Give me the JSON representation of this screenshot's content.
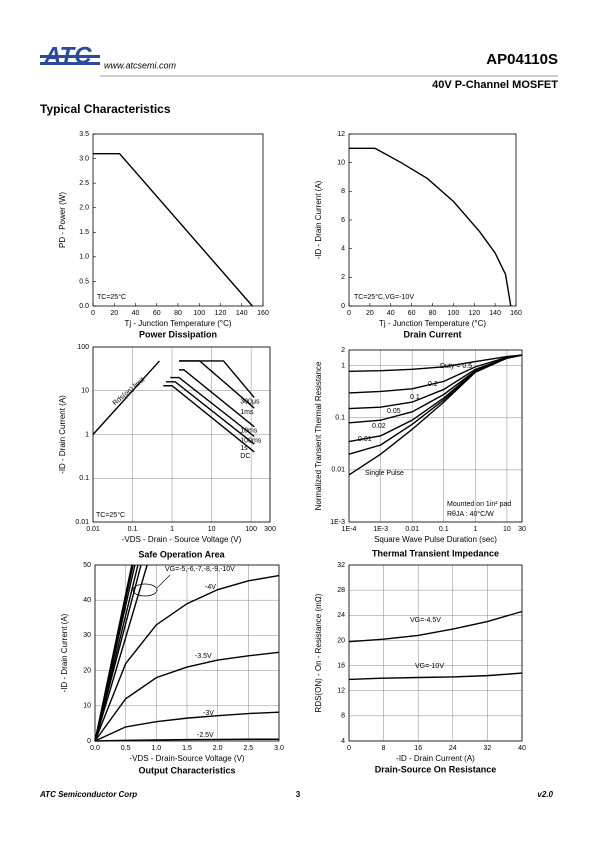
{
  "header": {
    "logo": "ATC",
    "url": "www.atcsemi.com",
    "part": "AP04110S",
    "subtitle": "40V P-Channel MOSFET",
    "section": "Typical Characteristics"
  },
  "footer": {
    "company": "ATC Semiconductor Corp",
    "page": "3",
    "version": "v2.0"
  },
  "chart_data": [
    {
      "type": "line",
      "title": "Power Dissipation",
      "x_label": "Tj - Junction Temperature (°C)",
      "y_label": "PD - Power (W)",
      "x": [
        0,
        25,
        150
      ],
      "series": [
        {
          "color": "#000000",
          "values": [
            3.1,
            3.1,
            0
          ]
        }
      ],
      "xlim": [
        0,
        160
      ],
      "xticks": [
        0,
        20,
        40,
        60,
        80,
        100,
        120,
        140,
        160
      ],
      "ylim": [
        0,
        3.5
      ],
      "yticks": [
        {
          "value": 0,
          "label": "0.0"
        },
        0.5,
        {
          "value": 1,
          "label": "1.0"
        },
        1.5,
        {
          "value": 2,
          "label": "2.0"
        },
        2.5,
        {
          "value": 3,
          "label": "3.0"
        },
        3.5
      ],
      "grid": false,
      "annotations": [
        "TC=25°C"
      ]
    },
    {
      "type": "line",
      "title": "Drain Current",
      "x_label": "Tj - Junction Temperature (°C)",
      "y_label": "-ID - Drain Current (A)",
      "x": [
        0,
        25,
        50,
        75,
        100,
        125,
        140,
        150,
        155
      ],
      "series": [
        {
          "color": "#000000",
          "values": [
            11,
            11,
            10,
            8.9,
            7.3,
            5.2,
            3.7,
            2.2,
            0
          ]
        }
      ],
      "xlim": [
        0,
        160
      ],
      "xticks": [
        0,
        20,
        40,
        60,
        80,
        100,
        120,
        140,
        160
      ],
      "ylim": [
        0,
        12
      ],
      "yticks": [
        0,
        2,
        4,
        6,
        8,
        10,
        12
      ],
      "grid": false,
      "annotations": [
        "TC=25°C,VG=-10V"
      ]
    },
    {
      "type": "line",
      "title": "Safe Operation Area",
      "x_label": "-VDS - Drain - Source Voltage (V)",
      "y_label": "-ID - Drain Current (A)",
      "xscale": "log",
      "yscale": "log",
      "series": [
        {
          "name": "Rds(on) limit",
          "color": "#000000",
          "x": [
            0.01,
            0.48
          ],
          "values": [
            1,
            48
          ]
        },
        {
          "name": "300μs",
          "color": "#000000",
          "x": [
            1.5,
            20,
            120
          ],
          "values": [
            48,
            48,
            7
          ]
        },
        {
          "name": "1ms",
          "color": "#000000",
          "x": [
            1.5,
            5,
            120
          ],
          "values": [
            48,
            48,
            4
          ]
        },
        {
          "name": "10ms",
          "color": "#000000",
          "x": [
            1.5,
            2,
            120
          ],
          "values": [
            30,
            30,
            1.5
          ]
        },
        {
          "name": "100ms",
          "color": "#000000",
          "x": [
            0.9,
            1.5,
            120
          ],
          "values": [
            20,
            20,
            0.9
          ]
        },
        {
          "name": "1s",
          "color": "#000000",
          "x": [
            0.7,
            1.2,
            120
          ],
          "values": [
            16,
            16,
            0.6
          ]
        },
        {
          "name": "DC",
          "color": "#000000",
          "x": [
            0.6,
            1,
            120
          ],
          "values": [
            13,
            13,
            0.4
          ]
        }
      ],
      "xlim": [
        0.01,
        300
      ],
      "xticks": [
        0.01,
        0.1,
        1,
        10,
        100,
        300
      ],
      "ylim": [
        0.01,
        100
      ],
      "yticks": [
        0.01,
        0.1,
        1,
        10,
        100
      ],
      "grid": true,
      "annotations": [
        "TC=25°C"
      ]
    },
    {
      "type": "line",
      "title": "Thermal Transient Impedance",
      "x_label": "Square Wave Pulse Duration (sec)",
      "y_label": "Normalized Transient Thermal Resistance",
      "xscale": "log",
      "yscale": "log",
      "x": [
        0.0001,
        0.001,
        0.01,
        0.1,
        1,
        10,
        30
      ],
      "series": [
        {
          "name": "Duty = 0.5",
          "color": "#000000",
          "values": [
            0.78,
            0.8,
            0.85,
            0.95,
            1.2,
            1.5,
            1.6
          ]
        },
        {
          "name": "0.2",
          "color": "#000000",
          "values": [
            0.3,
            0.32,
            0.36,
            0.5,
            0.95,
            1.45,
            1.6
          ]
        },
        {
          "name": "0.1",
          "color": "#000000",
          "values": [
            0.15,
            0.16,
            0.2,
            0.35,
            0.85,
            1.4,
            1.6
          ]
        },
        {
          "name": "0.05",
          "color": "#000000",
          "values": [
            0.08,
            0.09,
            0.13,
            0.28,
            0.8,
            1.4,
            1.6
          ]
        },
        {
          "name": "0.02",
          "color": "#000000",
          "values": [
            0.035,
            0.045,
            0.09,
            0.24,
            0.78,
            1.4,
            1.6
          ]
        },
        {
          "name": "0.01",
          "color": "#000000",
          "values": [
            0.02,
            0.03,
            0.075,
            0.22,
            0.77,
            1.4,
            1.6
          ]
        },
        {
          "name": "Single Pulse",
          "color": "#000000",
          "values": [
            0.008,
            0.02,
            0.06,
            0.2,
            0.75,
            1.4,
            1.6
          ]
        }
      ],
      "xlim": [
        0.0001,
        30
      ],
      "xticks": [
        {
          "value": 0.0001,
          "label": "1E-4"
        },
        {
          "value": 0.001,
          "label": "1E-3"
        },
        0.01,
        0.1,
        1,
        10,
        30
      ],
      "ylim": [
        0.001,
        2
      ],
      "yticks": [
        {
          "value": 0.001,
          "label": "1E-3"
        },
        0.01,
        0.1,
        1,
        2
      ],
      "grid": true,
      "annotations": [
        "Mounted on 1in² pad",
        "RθJA : 40°C/W"
      ]
    },
    {
      "type": "line",
      "title": "Output Characteristics",
      "x_label": "-VDS - Drain-Source Voltage (V)",
      "y_label": "-ID - Drain Current (A)",
      "x": [
        0,
        0.5,
        1,
        1.5,
        2,
        2.5,
        3
      ],
      "series": [
        {
          "name": "-4V",
          "color": "#000000",
          "values": [
            0,
            22,
            33,
            39,
            43,
            45.5,
            47
          ]
        },
        {
          "name": "-3.5V",
          "color": "#000000",
          "values": [
            0,
            12,
            18,
            21,
            23,
            24.2,
            25.2
          ]
        },
        {
          "name": "-3V",
          "color": "#000000",
          "values": [
            0,
            4,
            5.5,
            6.5,
            7.2,
            7.8,
            8.2
          ]
        },
        {
          "name": "-2.5V",
          "color": "#000000",
          "values": [
            0,
            0.2,
            0.3,
            0.4,
            0.45,
            0.5,
            0.5
          ]
        },
        {
          "color": "#000000",
          "x": [
            0,
            0.85
          ],
          "values": [
            0,
            50
          ]
        },
        {
          "color": "#000000",
          "x": [
            0,
            0.75
          ],
          "values": [
            0,
            50
          ]
        },
        {
          "color": "#000000",
          "x": [
            0,
            0.7
          ],
          "values": [
            0,
            50
          ]
        },
        {
          "color": "#000000",
          "x": [
            0,
            0.65
          ],
          "values": [
            0,
            50
          ]
        },
        {
          "color": "#000000",
          "x": [
            0,
            0.62
          ],
          "values": [
            0,
            50
          ]
        },
        {
          "color": "#000000",
          "x": [
            0,
            0.6
          ],
          "values": [
            0,
            50
          ]
        }
      ],
      "xlim": [
        0,
        3
      ],
      "xticks": [
        {
          "value": 0,
          "label": "0.0"
        },
        0.5,
        {
          "value": 1,
          "label": "1.0"
        },
        1.5,
        {
          "value": 2,
          "label": "2.0"
        },
        2.5,
        {
          "value": 3,
          "label": "3.0"
        }
      ],
      "ylim": [
        0,
        50
      ],
      "yticks": [
        0,
        10,
        20,
        30,
        40,
        50
      ],
      "grid": true,
      "annotations": [
        "VG=-5,-6,-7,-8,-9,-10V"
      ]
    },
    {
      "type": "line",
      "title": "Drain-Source On Resistance",
      "x_label": "-ID - Drain Current (A)",
      "y_label": "RDS(ON) - On - Resistance (mΩ)",
      "x": [
        0,
        8,
        16,
        24,
        32,
        40
      ],
      "series": [
        {
          "name": "VG=-4.5V",
          "color": "#000000",
          "values": [
            19.8,
            20.2,
            20.8,
            21.8,
            23,
            24.6
          ]
        },
        {
          "name": "VG=-10V",
          "color": "#000000",
          "values": [
            13.8,
            14,
            14.1,
            14.2,
            14.4,
            14.8
          ]
        }
      ],
      "xlim": [
        0,
        40
      ],
      "xticks": [
        0,
        8,
        16,
        24,
        32,
        40
      ],
      "ylim": [
        4,
        32
      ],
      "yticks": [
        4,
        8,
        12,
        16,
        20,
        24,
        28,
        32
      ],
      "grid": true,
      "annotations": []
    }
  ]
}
